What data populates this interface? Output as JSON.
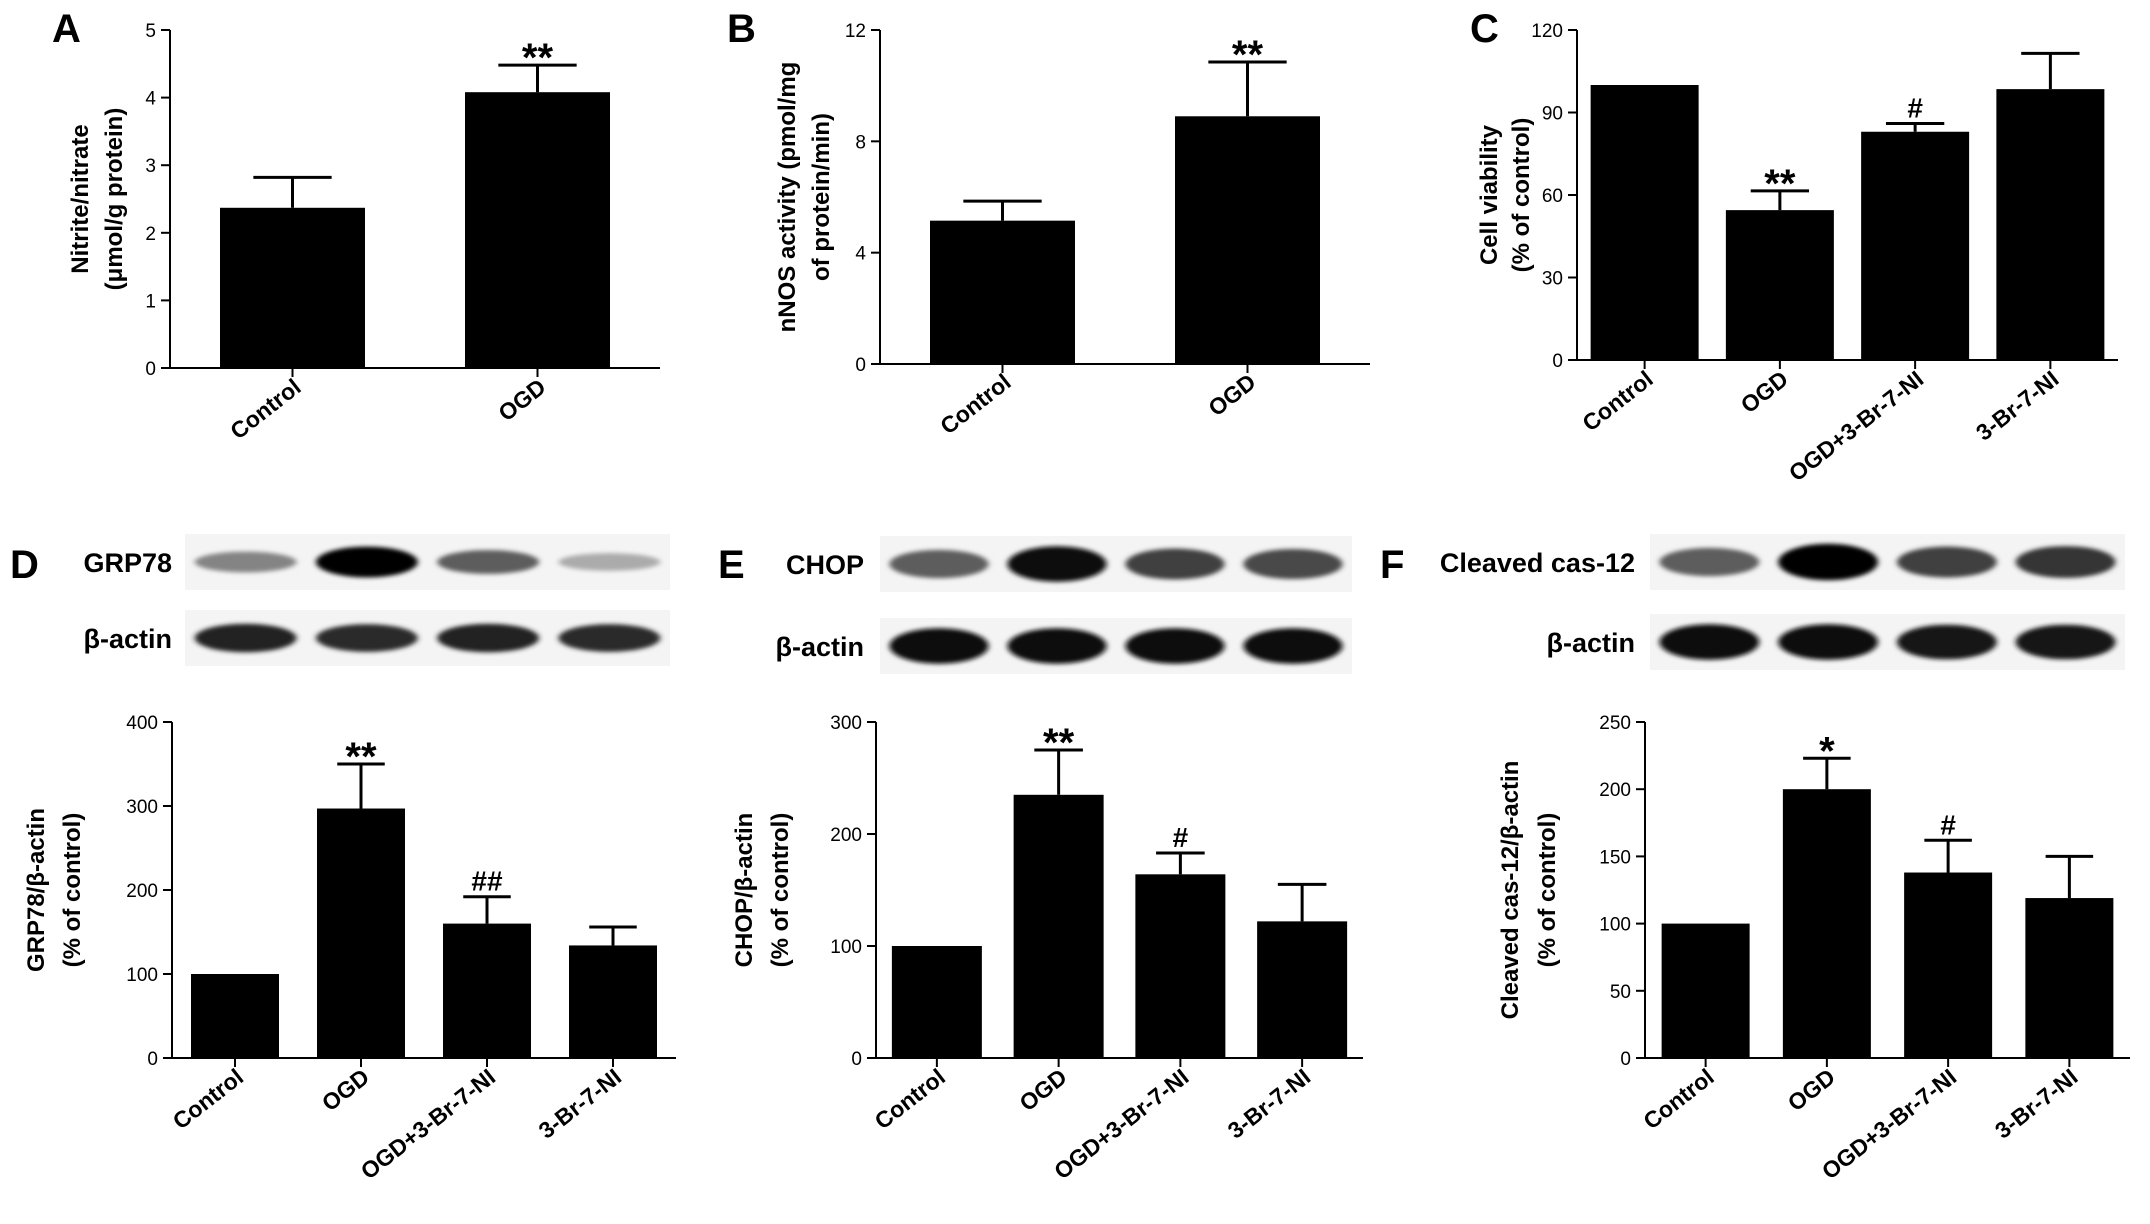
{
  "charts": [
    {
      "id": "A",
      "letter": "A",
      "type": "bar",
      "ylabel": [
        "Nitrite/nitrate",
        "(μmol/g protein)"
      ],
      "ylim": [
        0,
        5
      ],
      "yticks": [
        0,
        1,
        2,
        3,
        4,
        5
      ],
      "categories": [
        "Control",
        "OGD"
      ],
      "values": [
        2.37,
        4.08
      ],
      "errors": [
        0.45,
        0.4
      ],
      "significance": [
        "",
        "**"
      ],
      "cat_rotation": -38
    },
    {
      "id": "B",
      "letter": "B",
      "type": "bar",
      "ylabel": [
        "nNOS activity (pmol/mg",
        "of protein/min)"
      ],
      "ylim": [
        0,
        12
      ],
      "yticks": [
        0,
        4,
        8,
        12
      ],
      "categories": [
        "Control",
        "OGD"
      ],
      "values": [
        5.15,
        8.9
      ],
      "errors": [
        0.7,
        1.95
      ],
      "significance": [
        "",
        "**"
      ],
      "cat_rotation": -38
    },
    {
      "id": "C",
      "letter": "C",
      "type": "bar",
      "ylabel": [
        "Cell viability",
        "(% of control)"
      ],
      "ylim": [
        0,
        120
      ],
      "yticks": [
        0,
        30,
        60,
        90,
        120
      ],
      "categories": [
        "Control",
        "OGD",
        "OGD+3-Br-7-NI",
        "3-Br-7-NI"
      ],
      "values": [
        100,
        54.5,
        83,
        98.5
      ],
      "errors": [
        0,
        7,
        3,
        13
      ],
      "significance": [
        "",
        "**",
        "#",
        ""
      ],
      "cat_rotation": -38
    },
    {
      "id": "D",
      "letter": "D",
      "type": "bar",
      "ylabel": [
        "GRP78/β-actin",
        "(% of control)"
      ],
      "ylim": [
        0,
        400
      ],
      "yticks": [
        0,
        100,
        200,
        300,
        400
      ],
      "categories": [
        "Control",
        "OGD",
        "OGD+3-Br-7-NI",
        "3-Br-7-NI"
      ],
      "values": [
        100,
        297,
        160,
        134
      ],
      "errors": [
        0,
        53,
        32,
        22
      ],
      "significance": [
        "",
        "**",
        "##",
        ""
      ],
      "cat_rotation": -38,
      "blots": [
        {
          "label": "GRP78",
          "intensities": [
            0.35,
            1.0,
            0.55,
            0.15
          ]
        },
        {
          "label": "β-actin",
          "intensities": [
            0.85,
            0.8,
            0.85,
            0.8
          ]
        }
      ]
    },
    {
      "id": "E",
      "letter": "E",
      "type": "bar",
      "ylabel": [
        "CHOP/β-actin",
        "(% of control)"
      ],
      "ylim": [
        0,
        300
      ],
      "yticks": [
        0,
        100,
        200,
        300
      ],
      "categories": [
        "Control",
        "OGD",
        "OGD+3-Br-7-NI",
        "3-Br-7-NI"
      ],
      "values": [
        100,
        235,
        164,
        122
      ],
      "errors": [
        0,
        40,
        19,
        33
      ],
      "significance": [
        "",
        "**",
        "#",
        ""
      ],
      "cat_rotation": -38,
      "blots": [
        {
          "label": "CHOP",
          "intensities": [
            0.55,
            0.95,
            0.7,
            0.65
          ]
        },
        {
          "label": "β-actin",
          "intensities": [
            0.95,
            0.95,
            0.95,
            0.95
          ]
        }
      ]
    },
    {
      "id": "F",
      "letter": "F",
      "type": "bar",
      "ylabel": [
        "Cleaved cas-12/β-actin",
        "(% of control)"
      ],
      "ylim": [
        0,
        250
      ],
      "yticks": [
        0,
        50,
        100,
        150,
        200,
        250
      ],
      "categories": [
        "Control",
        "OGD",
        "OGD+3-Br-7-NI",
        "3-Br-7-NI"
      ],
      "values": [
        100,
        200,
        138,
        119
      ],
      "errors": [
        0,
        23,
        24,
        31
      ],
      "significance": [
        "",
        "*",
        "#",
        ""
      ],
      "cat_rotation": -38,
      "blots": [
        {
          "label": "Cleaved cas-12",
          "intensities": [
            0.55,
            1.0,
            0.7,
            0.75
          ]
        },
        {
          "label": "β-actin",
          "intensities": [
            0.95,
            0.95,
            0.9,
            0.9
          ]
        }
      ]
    }
  ]
}
